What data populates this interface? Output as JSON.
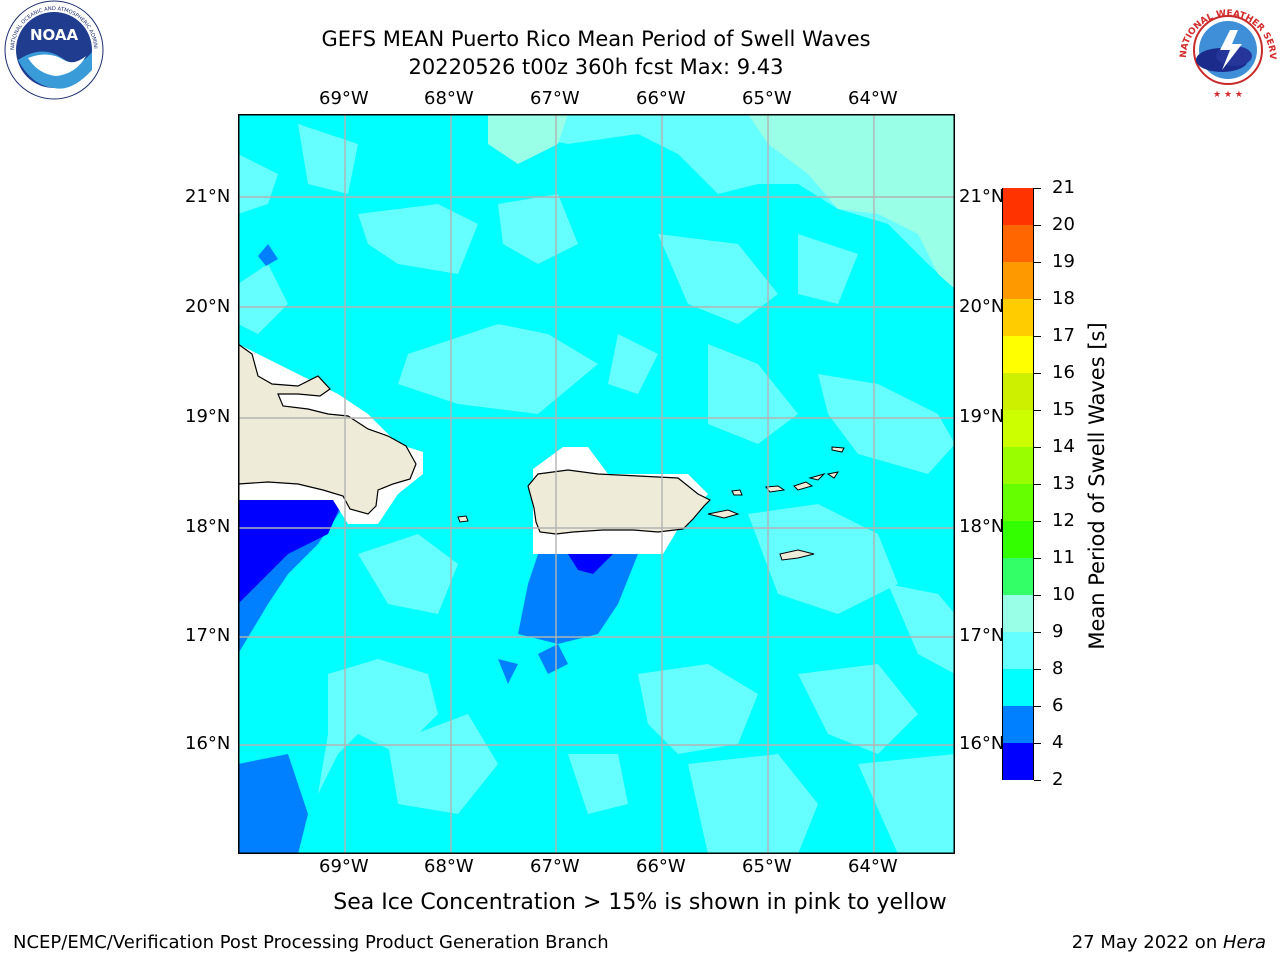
{
  "header": {
    "title_line1": "GEFS MEAN Puerto Rico Mean Period of Swell Waves",
    "title_line2": "20220526 t00z 360h fcst   Max: 9.43"
  },
  "logos": {
    "noaa": {
      "text": "NOAA",
      "ring_text": "NATIONAL OCEANIC AND ATMOSPHERIC ADMINISTRATION · U.S. DEPARTMENT OF COMMERCE"
    },
    "nws": {
      "ring_text": "NATIONAL WEATHER SERVICE"
    }
  },
  "map": {
    "lon_labels": [
      "69°W",
      "68°W",
      "67°W",
      "66°W",
      "65°W",
      "64°W"
    ],
    "lat_labels": [
      "21°N",
      "20°N",
      "19°N",
      "18°N",
      "17°N",
      "16°N"
    ],
    "extent": {
      "lon_min": -70.0,
      "lon_max": -63.25,
      "lat_min": 15.0,
      "lat_max": 21.75
    },
    "grid": true
  },
  "colorbar": {
    "label": "Mean Period of Swell Waves [s]",
    "ticks": [
      "2",
      "4",
      "6",
      "8",
      "9",
      "10",
      "11",
      "12",
      "13",
      "14",
      "15",
      "16",
      "17",
      "18",
      "19",
      "20",
      "21"
    ],
    "colors": [
      "#0000ff",
      "#0080ff",
      "#00ffff",
      "#66ffff",
      "#99ffe6",
      "#33ff66",
      "#33ff00",
      "#66ff00",
      "#99ff00",
      "#ccff00",
      "#ccf000",
      "#ffff00",
      "#ffcc00",
      "#ff9900",
      "#ff6600",
      "#ff3300",
      "#ff0000"
    ]
  },
  "subtitle": "Sea Ice Concentration > 15% is shown in pink to yellow",
  "footer": {
    "left": "NCEP/EMC/Verification Post Processing Product Generation Branch",
    "right_prefix": "27 May 2022 on ",
    "right_host": "Hera"
  }
}
